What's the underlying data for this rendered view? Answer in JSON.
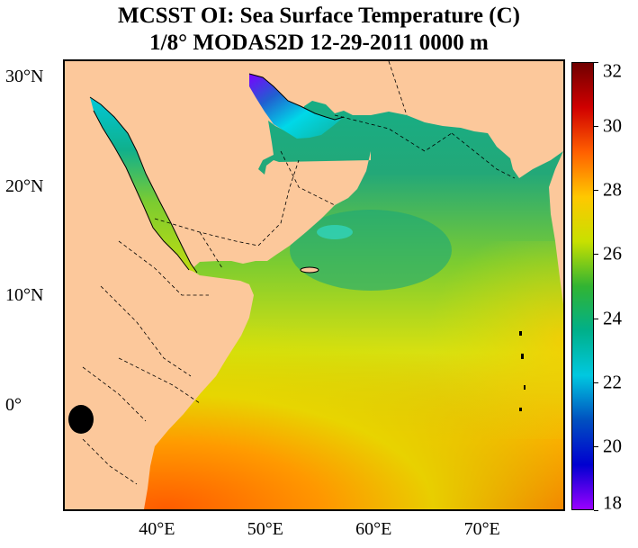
{
  "title": {
    "line1": "MCSST OI:  Sea Surface Temperature (C)",
    "line2": "1/8° MODAS2D 12-29-2011 0000 m"
  },
  "map": {
    "lon_range": [
      31.5,
      77.5
    ],
    "lat_range": [
      -9.5,
      31.5
    ],
    "land_color": "#fcc89b",
    "y_ticks": [
      {
        "lat": 30,
        "label": "30°N"
      },
      {
        "lat": 20,
        "label": "20°N"
      },
      {
        "lat": 10,
        "label": "10°N"
      },
      {
        "lat": 0,
        "label": "0°"
      }
    ],
    "x_ticks": [
      {
        "lon": 40,
        "label": "40°E"
      },
      {
        "lon": 50,
        "label": "50°E"
      },
      {
        "lon": 60,
        "label": "60°E"
      },
      {
        "lon": 70,
        "label": "70°E"
      }
    ]
  },
  "colorbar": {
    "min": 18,
    "max": 32,
    "ticks": [
      "18",
      "20",
      "22",
      "24",
      "26",
      "28",
      "30",
      "32"
    ],
    "colors": [
      "#9a00ff",
      "#0000d0",
      "#0050c0",
      "#00c8e0",
      "#00b08a",
      "#32b432",
      "#c8e000",
      "#ffc800",
      "#ff6000",
      "#d00000",
      "#700000"
    ]
  }
}
